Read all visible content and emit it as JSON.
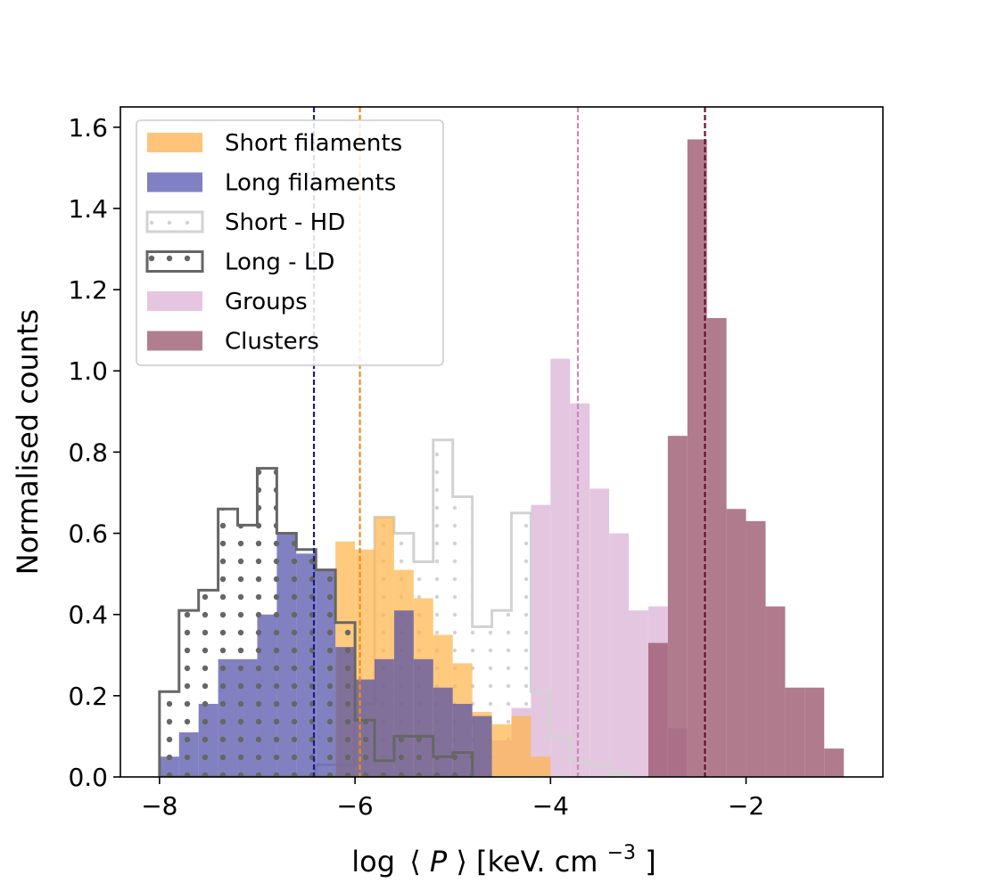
{
  "chart_data": {
    "type": "histogram",
    "xlabel": "log ⟨P⟩ [keV. cm⁻³]",
    "xlabel_parts": {
      "log": "log",
      "lang": "⟨",
      "var": "P",
      "rang": "⟩",
      "unit_open": " [keV. cm",
      "exponent": "−3",
      "unit_close": "]"
    },
    "ylabel": "Normalised counts",
    "xlim": [
      -8.4,
      -0.6
    ],
    "ylim": [
      0,
      1.65
    ],
    "x_ticks": [
      -8,
      -6,
      -4,
      -2
    ],
    "x_tick_labels": [
      "−8",
      "−6",
      "−4",
      "−2"
    ],
    "y_ticks": [
      0.0,
      0.2,
      0.4,
      0.6,
      0.8,
      1.0,
      1.2,
      1.4,
      1.6
    ],
    "y_tick_labels": [
      "0.0",
      "0.2",
      "0.4",
      "0.6",
      "0.8",
      "1.0",
      "1.2",
      "1.4",
      "1.6"
    ],
    "legend_position": "upper-left",
    "series": [
      {
        "name": "Groups",
        "style": "filled",
        "color": "#e0bcdc",
        "opacity": 0.85,
        "edges": [
          -4.6,
          -4.4,
          -4.2,
          -4.0,
          -3.8,
          -3.6,
          -3.4,
          -3.2,
          -3.0,
          -2.8,
          -2.6
        ],
        "values": [
          0.09,
          0.17,
          0.67,
          1.03,
          0.92,
          0.71,
          0.6,
          0.41,
          0.42,
          0.12
        ]
      },
      {
        "name": "Clusters",
        "style": "filled",
        "color": "#9c5a70",
        "opacity": 0.8,
        "edges": [
          -3.0,
          -2.8,
          -2.6,
          -2.4,
          -2.2,
          -2.0,
          -1.8,
          -1.6,
          -1.4,
          -1.2,
          -1.0
        ],
        "values": [
          0.33,
          0.84,
          1.57,
          1.13,
          0.66,
          0.63,
          0.42,
          0.22,
          0.22,
          0.07
        ]
      },
      {
        "name": "Short - HD",
        "style": "step-dotted",
        "color": "#d2d2d2",
        "edges": [
          -6.4,
          -6.2,
          -6.0,
          -5.8,
          -5.6,
          -5.4,
          -5.2,
          -5.0,
          -4.8,
          -4.6,
          -4.4,
          -4.2,
          -4.0,
          -3.8,
          -3.6,
          -3.4,
          -3.2
        ],
        "values": [
          0.03,
          0.03,
          0.18,
          0.64,
          0.6,
          0.53,
          0.83,
          0.69,
          0.37,
          0.41,
          0.65,
          0.21,
          0.1,
          0.04,
          0.03,
          0.01
        ]
      },
      {
        "name": "Short filaments",
        "style": "filled",
        "color": "#ffb347",
        "opacity": 0.7,
        "edges": [
          -6.2,
          -6.0,
          -5.8,
          -5.6,
          -5.4,
          -5.2,
          -5.0,
          -4.8,
          -4.6,
          -4.4,
          -4.2,
          -4.0
        ],
        "values": [
          0.58,
          0.56,
          0.64,
          0.51,
          0.44,
          0.35,
          0.28,
          0.16,
          0.13,
          0.15,
          0.05
        ]
      },
      {
        "name": "Long filaments",
        "style": "filled",
        "color": "#4b4ba6",
        "opacity": 0.7,
        "edges": [
          -8.0,
          -7.8,
          -7.6,
          -7.4,
          -7.2,
          -7.0,
          -6.8,
          -6.6,
          -6.4,
          -6.2,
          -6.0,
          -5.8,
          -5.6,
          -5.4,
          -5.2,
          -5.0,
          -4.8,
          -4.6
        ],
        "values": [
          0.05,
          0.11,
          0.18,
          0.29,
          0.29,
          0.4,
          0.6,
          0.55,
          0.51,
          0.32,
          0.24,
          0.29,
          0.41,
          0.29,
          0.22,
          0.18,
          0.15
        ]
      },
      {
        "name": "Long - LD",
        "style": "step-dotted",
        "color": "#666666",
        "edges": [
          -8.0,
          -7.8,
          -7.6,
          -7.4,
          -7.2,
          -7.0,
          -6.8,
          -6.6,
          -6.4,
          -6.2,
          -6.0,
          -5.8,
          -5.6,
          -5.4,
          -5.2,
          -5.0,
          -4.8
        ],
        "values": [
          0.21,
          0.41,
          0.46,
          0.66,
          0.62,
          0.76,
          0.6,
          0.56,
          0.51,
          0.38,
          0.14,
          0.04,
          0.1,
          0.1,
          0.05,
          0.06
        ]
      }
    ],
    "vlines": [
      {
        "x": -6.42,
        "color": "#1a1a8c"
      },
      {
        "x": -5.95,
        "color": "#f28a1a"
      },
      {
        "x": -3.72,
        "color": "#cc88bb"
      },
      {
        "x": -2.42,
        "color": "#6a0f2a"
      }
    ],
    "legend": [
      {
        "label": "Short filaments",
        "style": "filled",
        "color": "#ffc479"
      },
      {
        "label": "Long filaments",
        "style": "filled",
        "color": "#8080c4"
      },
      {
        "label": "Short - HD",
        "style": "step-dotted",
        "color": "#d2d2d2"
      },
      {
        "label": "Long - LD",
        "style": "step-dotted",
        "color": "#666666"
      },
      {
        "label": "Groups",
        "style": "filled",
        "color": "#e6c5e1"
      },
      {
        "label": "Clusters",
        "style": "filled",
        "color": "#b07e8f"
      }
    ]
  }
}
